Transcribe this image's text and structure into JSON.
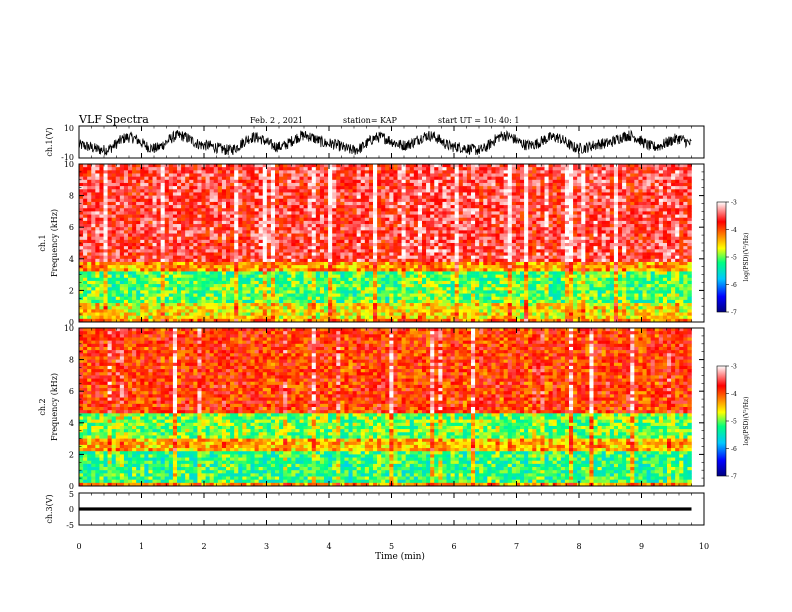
{
  "header": {
    "title": "VLF Spectra",
    "date": "Feb. 2 , 2021",
    "station": "station= KAP",
    "start_time": "start UT = 10: 40: 1"
  },
  "chart_data": [
    {
      "id": "ch1-waveform",
      "type": "line",
      "ylabel": "ch.1(V)",
      "ylim": [
        -10,
        10
      ],
      "ytick_labels": [
        "10",
        "-10"
      ],
      "description_series": {
        "x_minutes": [
          0,
          0.4,
          0.8,
          1.2,
          1.6,
          2.0,
          2.4,
          2.8,
          3.2,
          3.6,
          4.0,
          4.4,
          4.8,
          5.2,
          5.6,
          6.0,
          6.4,
          6.8,
          7.2,
          7.6,
          8.0,
          8.4,
          8.8,
          9.2,
          9.6,
          9.8
        ],
        "y_volts": [
          -2,
          -5,
          3,
          -4,
          4,
          -2,
          -5,
          3,
          -3,
          4,
          -1,
          -5,
          3,
          -2,
          4,
          -3,
          -5,
          4,
          -2,
          3,
          -4,
          -1,
          4,
          -3,
          2,
          -1
        ]
      }
    },
    {
      "id": "ch1-spectrogram",
      "type": "heatmap",
      "ylabel": "ch.1 Frequency (kHz)",
      "ylabel_top": "ch.1",
      "ylabel_bottom": "Frequency (kHz)",
      "ylim": [
        0,
        10
      ],
      "ytick_labels": [
        "0",
        "2",
        "4",
        "6",
        "8",
        "10"
      ],
      "xlim": [
        0,
        9.8
      ],
      "colorbar": {
        "label": "log(PSD)(V²/Hz)",
        "range": [
          -7,
          -3
        ],
        "tick_labels": [
          "-3",
          "-4",
          "-5",
          "-6",
          "-7"
        ],
        "colors": [
          "#000080",
          "#0000ff",
          "#00c8ff",
          "#00ff80",
          "#ffff00",
          "#ff8000",
          "#ff0000",
          "#ffffff"
        ]
      },
      "bands_khz": [
        {
          "from": 0,
          "to": 0.3,
          "level": -4.2
        },
        {
          "from": 0.3,
          "to": 1.2,
          "level": -4.6
        },
        {
          "from": 1.2,
          "to": 3.3,
          "level": -5.1
        },
        {
          "from": 3.3,
          "to": 3.8,
          "level": -4.3
        },
        {
          "from": 3.8,
          "to": 10,
          "level": -3.6
        }
      ]
    },
    {
      "id": "ch2-spectrogram",
      "type": "heatmap",
      "ylabel": "ch.2 Frequency (kHz)",
      "ylabel_top": "ch.2",
      "ylabel_bottom": "Frequency (kHz)",
      "ylim": [
        0,
        10
      ],
      "ytick_labels": [
        "0",
        "2",
        "4",
        "6",
        "8",
        "10"
      ],
      "xlim": [
        0,
        9.8
      ],
      "colorbar": {
        "label": "log(PSD)(V²/Hz)",
        "range": [
          -7,
          -3
        ],
        "tick_labels": [
          "-3",
          "-4",
          "-5",
          "-6",
          "-7"
        ],
        "colors": [
          "#000080",
          "#0000ff",
          "#00c8ff",
          "#00ff80",
          "#ffff00",
          "#ff8000",
          "#ff0000",
          "#ffffff"
        ]
      },
      "bands_khz": [
        {
          "from": 0,
          "to": 0.3,
          "level": -4.3
        },
        {
          "from": 0.3,
          "to": 2.2,
          "level": -5.2
        },
        {
          "from": 2.2,
          "to": 3.0,
          "level": -4.4
        },
        {
          "from": 3.0,
          "to": 4.6,
          "level": -5.0
        },
        {
          "from": 4.6,
          "to": 10,
          "level": -3.9
        }
      ]
    },
    {
      "id": "ch3-waveform",
      "type": "line",
      "ylabel": "ch.3(V)",
      "ylim": [
        -5,
        5
      ],
      "ytick_labels": [
        "5",
        "0",
        "-5"
      ],
      "band": {
        "from": -0.5,
        "to": 0.5
      }
    }
  ],
  "x_axis": {
    "label": "Time (min)",
    "range": [
      0,
      10
    ],
    "tick_labels": [
      "0",
      "1",
      "2",
      "3",
      "4",
      "5",
      "6",
      "7",
      "8",
      "9",
      "10"
    ]
  },
  "colors": {
    "axis": "#000000",
    "trace": "#000000",
    "background": "#ffffff"
  }
}
